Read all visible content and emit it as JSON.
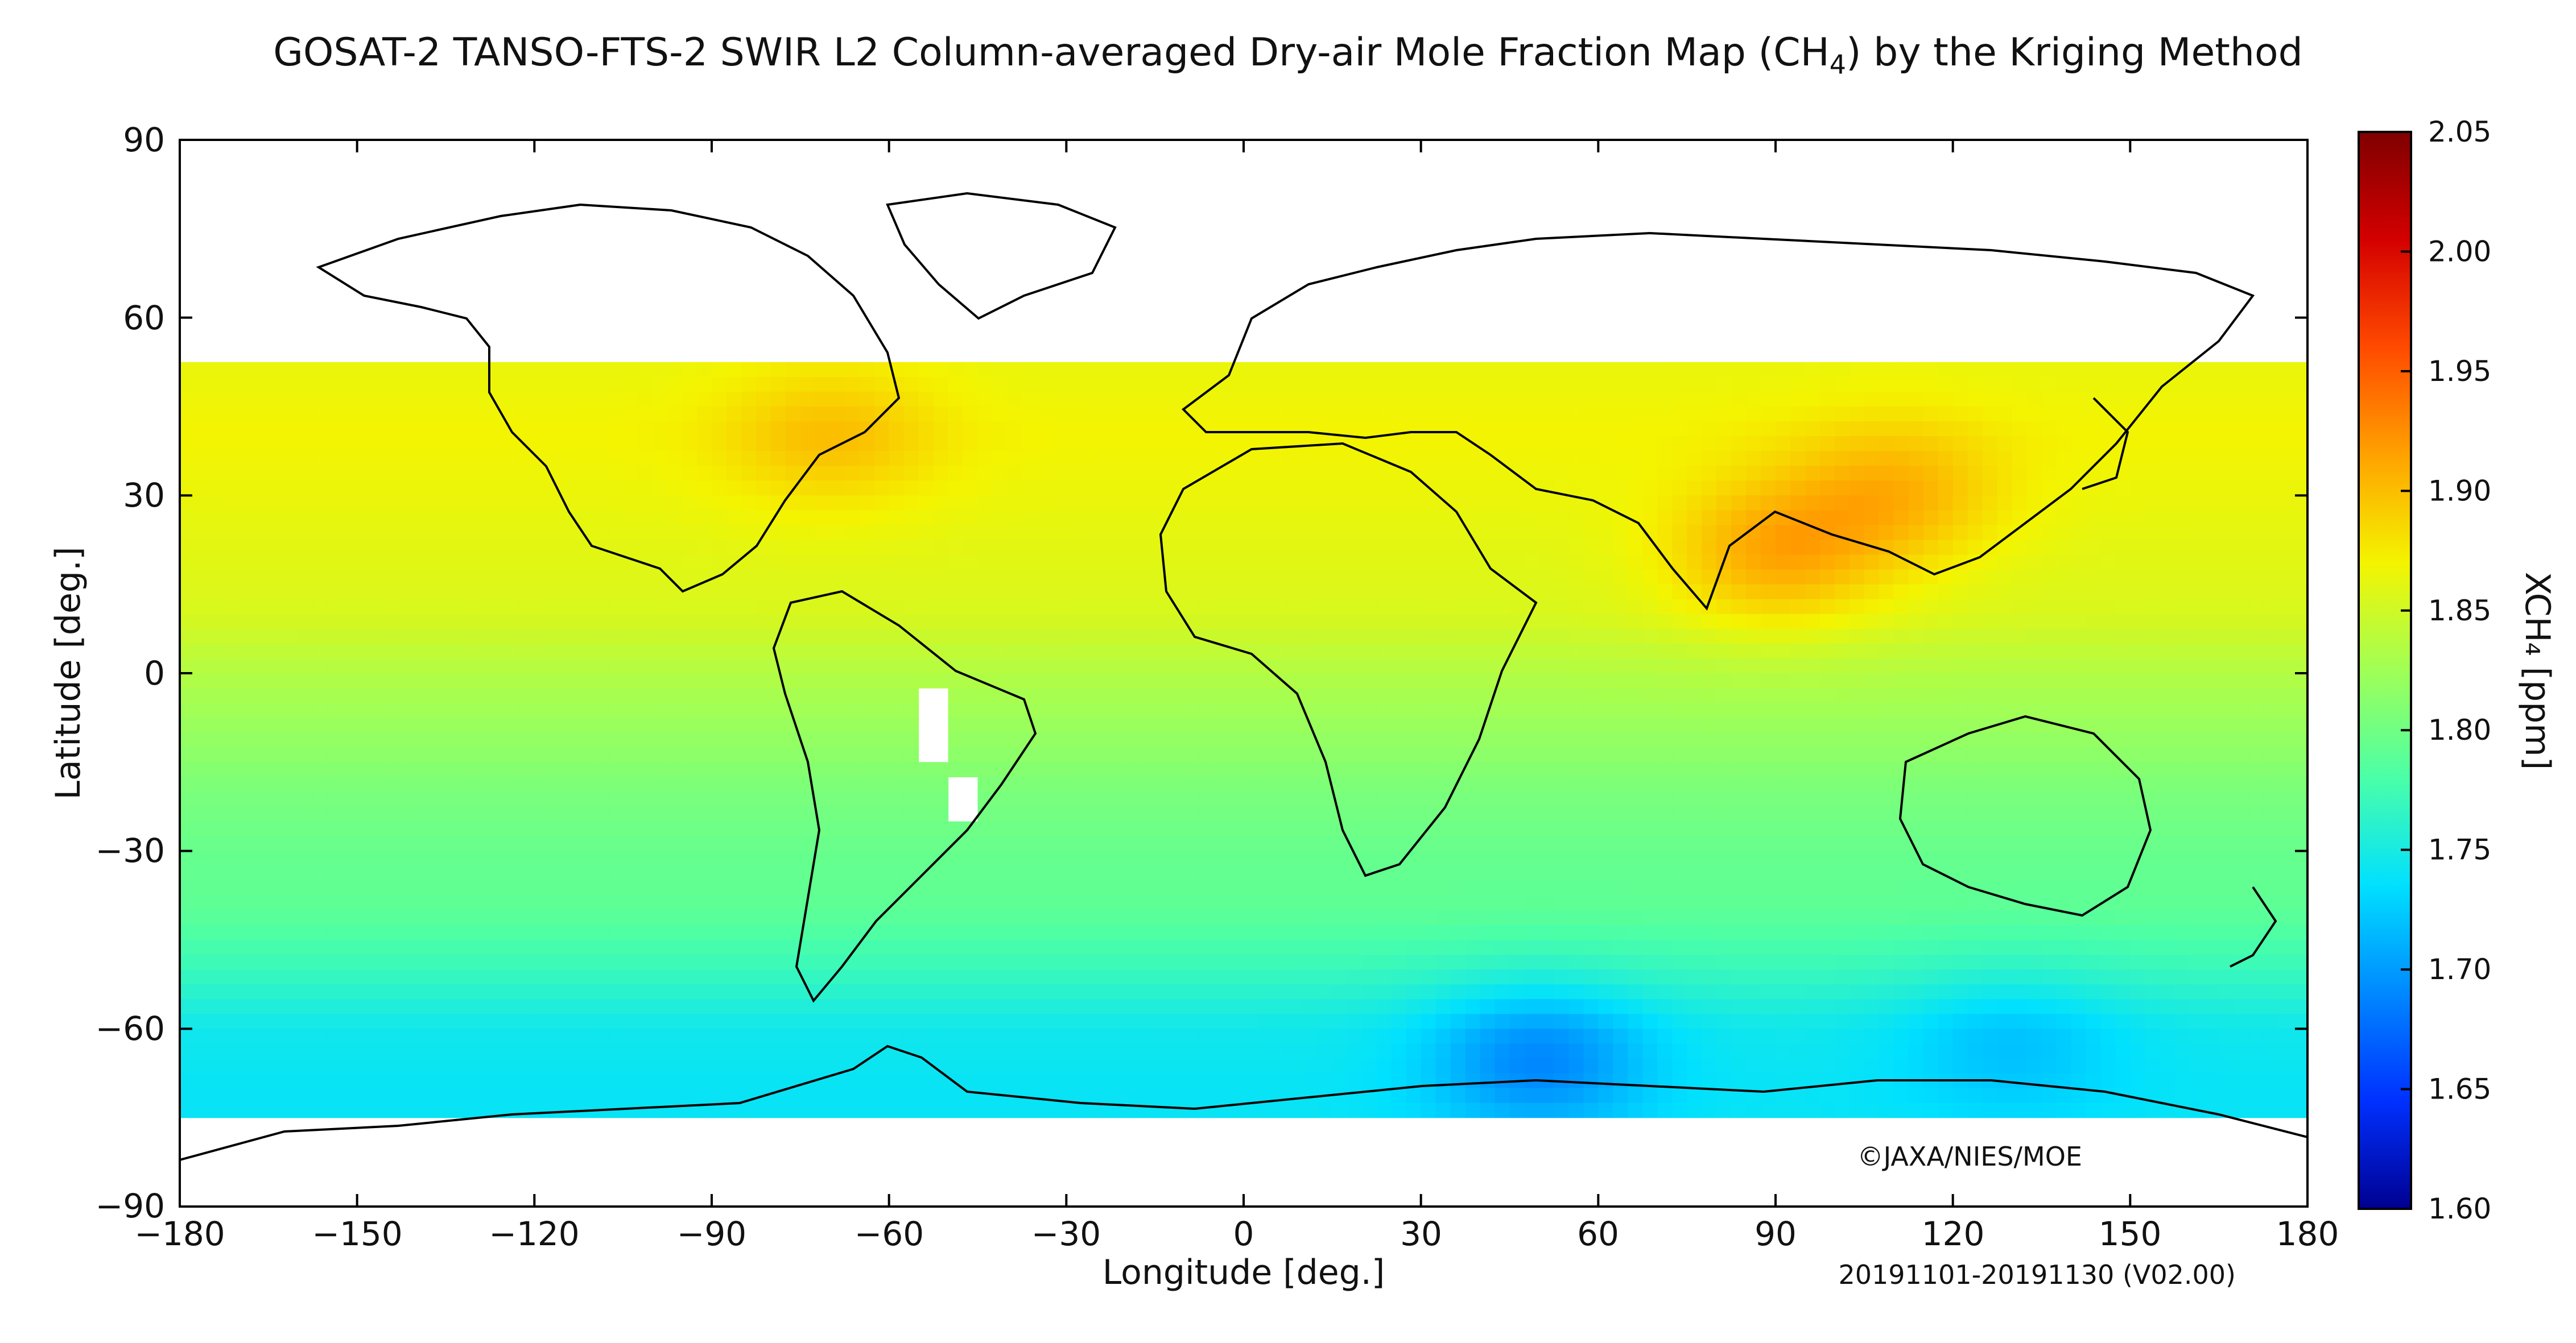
{
  "title": {
    "main": "GOSAT-2 TANSO-FTS-2 SWIR L2 Column-averaged Dry-air Mole Fraction Map (CH",
    "sub": "4",
    "suffix": ") by the Kriging Method"
  },
  "axes": {
    "xlabel": "Longitude [deg.]",
    "ylabel": "Latitude [deg.]",
    "xticks": [
      "−180",
      "−150",
      "−120",
      "−90",
      "−60",
      "−30",
      "0",
      "30",
      "60",
      "90",
      "120",
      "150",
      "180"
    ],
    "yticks": [
      "90",
      "60",
      "30",
      "0",
      "−30",
      "−60",
      "−90"
    ]
  },
  "colorbar": {
    "label": "XCH₄ [ppm]",
    "ticks": [
      "2.05",
      "2.00",
      "1.95",
      "1.90",
      "1.85",
      "1.80",
      "1.75",
      "1.70",
      "1.65",
      "1.60"
    ],
    "colors": [
      "#7f0000",
      "#d40000",
      "#ff4a00",
      "#ffa200",
      "#f4f400",
      "#a0ff56",
      "#4affa8",
      "#00e0ff",
      "#0088ff",
      "#0030ff",
      "#000090"
    ]
  },
  "copyright": "©JAXA/NIES/MOE",
  "period": "20191101-20191130 (V02.00)",
  "chart_data": {
    "type": "heatmap",
    "variable": "XCH4",
    "units": "ppm",
    "xlim": [
      -180,
      180
    ],
    "ylim": [
      -90,
      90
    ],
    "color_range": [
      1.6,
      2.05
    ],
    "coverage_lat": [
      -75,
      52
    ],
    "no_data_regions": [
      {
        "lon": [
          -180,
          180
        ],
        "lat": [
          52,
          90
        ]
      },
      {
        "lon": [
          -180,
          180
        ],
        "lat": [
          -90,
          -75
        ]
      },
      {
        "lon": [
          -56,
          -50
        ],
        "lat": [
          -15,
          -2
        ]
      },
      {
        "lon": [
          -50,
          -45
        ],
        "lat": [
          -25,
          -18
        ]
      }
    ],
    "bands": [
      {
        "lat": 50,
        "value": 1.865
      },
      {
        "lat": 40,
        "value": 1.87
      },
      {
        "lat": 30,
        "value": 1.865
      },
      {
        "lat": 20,
        "value": 1.86
      },
      {
        "lat": 10,
        "value": 1.855
      },
      {
        "lat": 0,
        "value": 1.835
      },
      {
        "lat": -10,
        "value": 1.82
      },
      {
        "lat": -20,
        "value": 1.805
      },
      {
        "lat": -30,
        "value": 1.795
      },
      {
        "lat": -40,
        "value": 1.79
      },
      {
        "lat": -50,
        "value": 1.77
      },
      {
        "lat": -60,
        "value": 1.745
      },
      {
        "lat": -70,
        "value": 1.74
      }
    ],
    "hotspots": [
      {
        "lon": 90,
        "lat": 20,
        "value": 1.91
      },
      {
        "lon": 110,
        "lat": 30,
        "value": 1.905
      },
      {
        "lon": -70,
        "lat": 40,
        "value": 1.9
      },
      {
        "lon": 50,
        "lat": -65,
        "value": 1.69
      },
      {
        "lon": 130,
        "lat": -62,
        "value": 1.72
      }
    ]
  }
}
